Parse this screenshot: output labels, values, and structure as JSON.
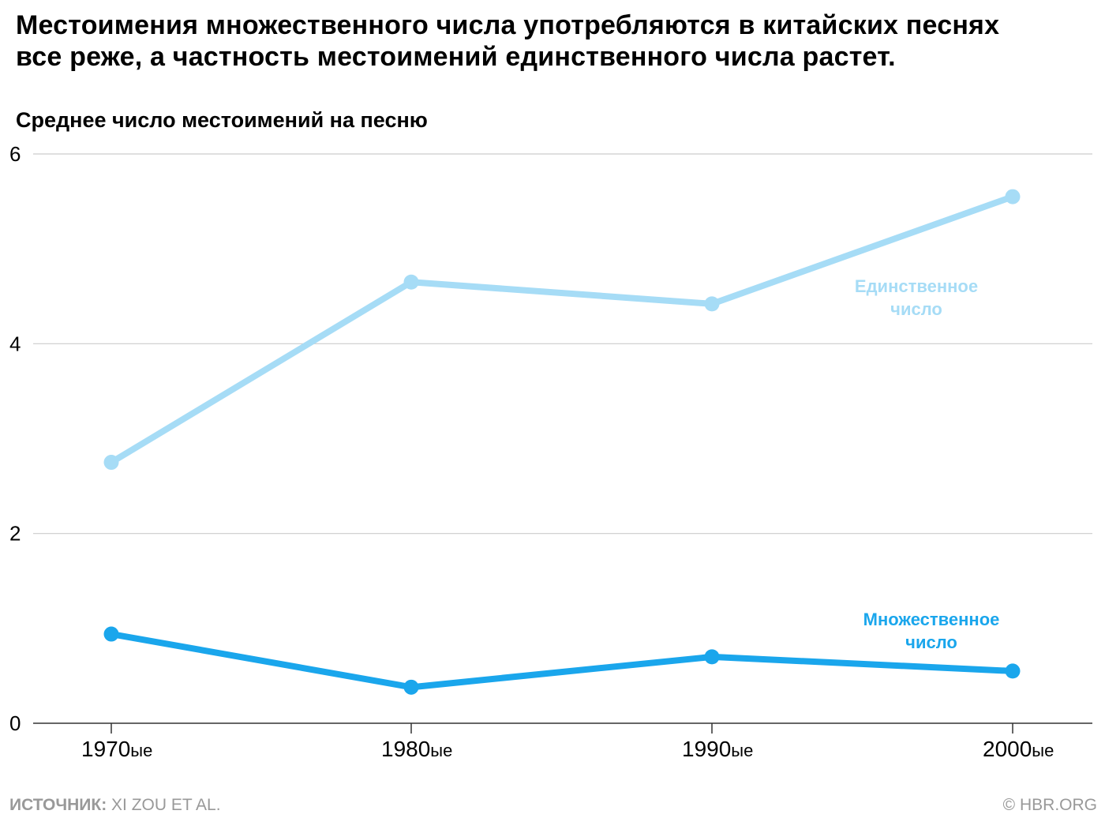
{
  "title_line1": "Местоимения множественного числа употребляются в китайских песнях",
  "title_line2": "все реже, а частность местоимений единственного числа растет.",
  "subtitle": "Среднее число местоимений на песню",
  "footer": {
    "source_label": "ИСТОЧНИК:",
    "source_text": " XI ZOU ET AL.",
    "credit": "© HBR.ORG"
  },
  "colors": {
    "singular": "#a6dcf6",
    "plural": "#1aa6ec",
    "grid": "#cccccc",
    "axis": "#333333",
    "footer": "#999999"
  },
  "chart_data": {
    "type": "line",
    "title": "Местоимения множественного числа употребляются в китайских песнях все реже, а частность местоимений единственного числа растет.",
    "ylabel": "Среднее число местоимений на песню",
    "xlabel": "",
    "categories": [
      "1970ые",
      "1980ые",
      "1990ые",
      "2000ые"
    ],
    "category_labels": [
      {
        "main": "1970",
        "suffix": "ые"
      },
      {
        "main": "1980",
        "suffix": "ые"
      },
      {
        "main": "1990",
        "suffix": "ые"
      },
      {
        "main": "2000",
        "suffix": "ые"
      }
    ],
    "ylim": [
      0,
      6
    ],
    "yticks": [
      0,
      2,
      4,
      6
    ],
    "grid": true,
    "legend": "inline labels at right",
    "series": [
      {
        "name": "Единственное число",
        "label_lines": [
          "Единственное",
          "число"
        ],
        "color": "#a6dcf6",
        "values": [
          2.75,
          4.65,
          4.42,
          5.55
        ]
      },
      {
        "name": "Множественное число",
        "label_lines": [
          "Множественное",
          "число"
        ],
        "color": "#1aa6ec",
        "values": [
          0.94,
          0.38,
          0.7,
          0.55
        ]
      }
    ]
  }
}
